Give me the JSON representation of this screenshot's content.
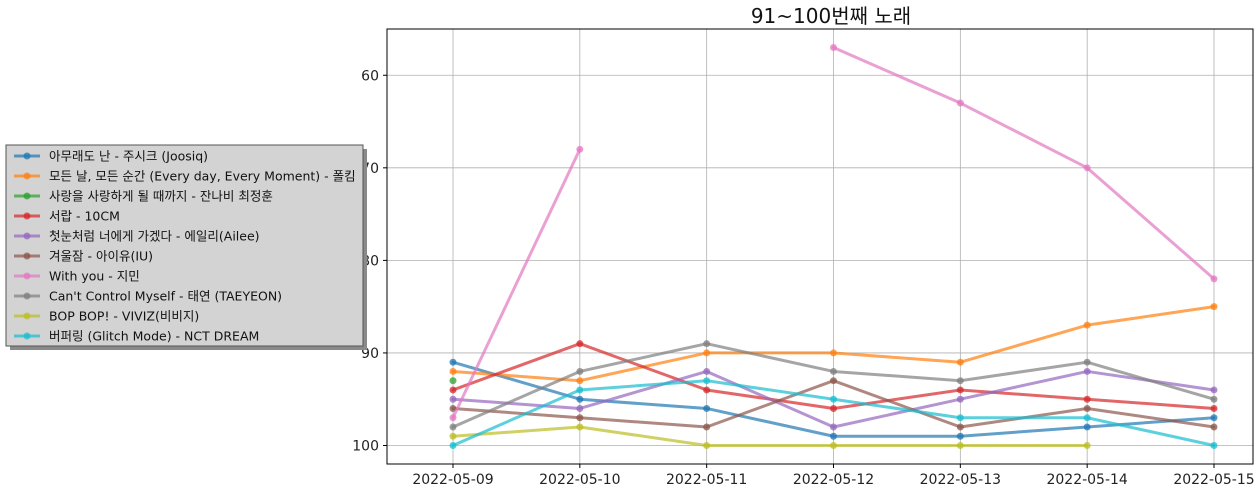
{
  "chart_data": {
    "type": "line",
    "title": "91~100번째 노래",
    "xlabel": "",
    "ylabel": "",
    "y_inverted": true,
    "ylim": [
      102,
      55
    ],
    "yticks": [
      60,
      70,
      80,
      90,
      100
    ],
    "grid": true,
    "legend_position": "left",
    "categories": [
      "2022-05-09",
      "2022-05-10",
      "2022-05-11",
      "2022-05-12",
      "2022-05-13",
      "2022-05-14",
      "2022-05-15"
    ],
    "series": [
      {
        "name": "아무래도 난 - 주시크 (Joosiq)",
        "color": "#1f77b4",
        "values": [
          91,
          95,
          96,
          99,
          99,
          98,
          97
        ]
      },
      {
        "name": "모든 날, 모든 순간 (Every day, Every Moment) - 폴킴",
        "color": "#ff7f0e",
        "values": [
          92,
          93,
          90,
          90,
          91,
          87,
          85
        ]
      },
      {
        "name": "사랑을 사랑하게 될 때까지 - 잔나비 최정훈",
        "color": "#2ca02c",
        "values": [
          93,
          null,
          null,
          null,
          null,
          null,
          null
        ]
      },
      {
        "name": "서랍 - 10CM",
        "color": "#d62728",
        "values": [
          94,
          89,
          94,
          96,
          94,
          95,
          96
        ]
      },
      {
        "name": "첫눈처럼 너에게 가겠다 - 에일리(Ailee)",
        "color": "#9467bd",
        "values": [
          95,
          96,
          92,
          98,
          95,
          92,
          94
        ]
      },
      {
        "name": "겨울잠 - 아이유(IU)",
        "color": "#8c564b",
        "values": [
          96,
          97,
          98,
          93,
          98,
          96,
          98
        ]
      },
      {
        "name": "With you - 지민",
        "color": "#e377c2",
        "values": [
          97,
          68,
          null,
          57,
          63,
          70,
          82
        ]
      },
      {
        "name": "Can't Control Myself - 태연 (TAEYEON)",
        "color": "#7f7f7f",
        "values": [
          98,
          92,
          89,
          92,
          93,
          91,
          95
        ]
      },
      {
        "name": "BOP BOP! - VIVIZ(비비지)",
        "color": "#bcbd22",
        "values": [
          99,
          98,
          100,
          100,
          100,
          100,
          null
        ]
      },
      {
        "name": "버퍼링 (Glitch Mode) - NCT DREAM",
        "color": "#17becf",
        "values": [
          100,
          94,
          93,
          95,
          97,
          97,
          100
        ]
      }
    ]
  }
}
